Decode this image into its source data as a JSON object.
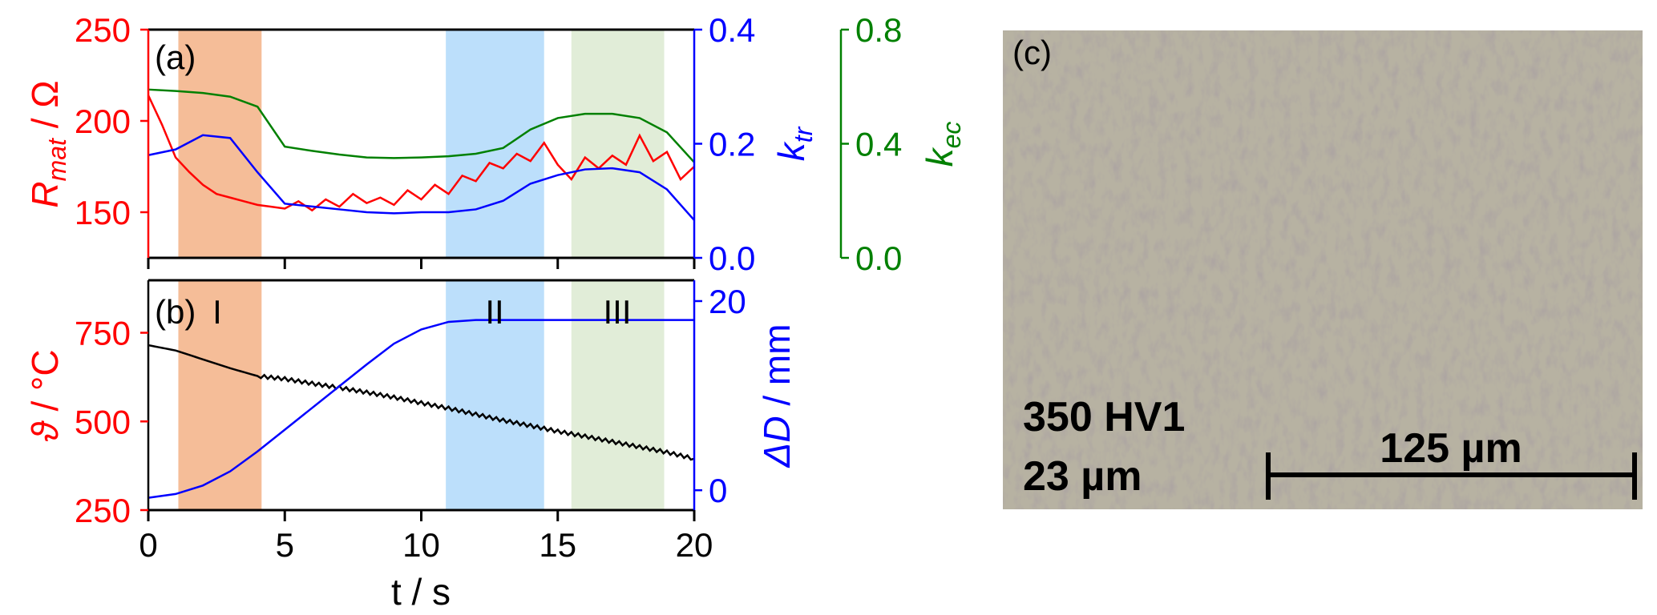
{
  "chart_data": [
    {
      "panel": "(a)",
      "type": "line",
      "x_label": "t / s",
      "xlim": [
        0,
        20
      ],
      "x_ticks": [
        "0",
        "5",
        "10",
        "15",
        "20"
      ],
      "shaded_regions": [
        {
          "from": 1.1,
          "to": 4.15,
          "color": "#f5bd98"
        },
        {
          "from": 10.9,
          "to": 14.5,
          "color": "#bcdffb"
        },
        {
          "from": 15.5,
          "to": 18.9,
          "color": "#e1edd8"
        }
      ],
      "axes": {
        "left": {
          "label_main": "R",
          "label_sub": "mat",
          "label_rest": " / Ω",
          "color": "#ff0000",
          "ylim": [
            125,
            250
          ],
          "ticks": [
            "150",
            "200",
            "250"
          ]
        },
        "right": {
          "label_main": "k",
          "label_sub": "tr",
          "color": "#0000ff",
          "ylim": [
            0,
            0.4
          ],
          "ticks": [
            "0.0",
            "0.2",
            "0.4"
          ]
        },
        "right2": {
          "label_main": "k",
          "label_sub": "ec",
          "color": "#008000",
          "ylim": [
            0,
            0.8
          ],
          "ticks": [
            "0.0",
            "0.4",
            "0.8"
          ]
        }
      },
      "series": [
        {
          "name": "R_mat",
          "axis": "left",
          "color": "#ff0000",
          "t_step": 0.5,
          "values": [
            214,
            198,
            180,
            172,
            165,
            160,
            158,
            156,
            154,
            153,
            152,
            156,
            151,
            157,
            153,
            160,
            155,
            158,
            154,
            162,
            157,
            165,
            160,
            170,
            167,
            177,
            174,
            182,
            178,
            188,
            176,
            168,
            180,
            174,
            181,
            176,
            192,
            178,
            183,
            168,
            175
          ]
        },
        {
          "name": "k_tr",
          "axis": "right",
          "color": "#0000ff",
          "t_step": 1,
          "values": [
            0.18,
            0.19,
            0.215,
            0.21,
            0.15,
            0.095,
            0.09,
            0.085,
            0.08,
            0.078,
            0.08,
            0.08,
            0.085,
            0.1,
            0.13,
            0.145,
            0.155,
            0.157,
            0.15,
            0.12,
            0.066
          ]
        },
        {
          "name": "k_ec",
          "axis": "right2",
          "color": "#008000",
          "t_step": 1,
          "values": [
            0.59,
            0.585,
            0.578,
            0.565,
            0.53,
            0.39,
            0.375,
            0.362,
            0.352,
            0.35,
            0.352,
            0.356,
            0.365,
            0.385,
            0.45,
            0.49,
            0.505,
            0.505,
            0.49,
            0.44,
            0.335
          ]
        }
      ]
    },
    {
      "panel": "(b)",
      "type": "line",
      "x_label": "t / s",
      "xlim": [
        0,
        20
      ],
      "x_ticks": [
        "0",
        "5",
        "10",
        "15",
        "20"
      ],
      "region_labels": [
        "I",
        "II",
        "III"
      ],
      "axes": {
        "left": {
          "label_main": "ϑ",
          "label_rest": " / °C",
          "color": "#ff0000",
          "ylim": [
            250,
            898
          ],
          "ticks": [
            "250",
            "500",
            "750"
          ]
        },
        "right": {
          "label_main": "ΔD",
          "label_rest": " / mm",
          "color": "#0000ff",
          "ylim": [
            -2.1,
            22.2
          ],
          "ticks": [
            "0",
            "20"
          ]
        }
      },
      "series": [
        {
          "name": "temperature",
          "axis": "left",
          "color": "#000000",
          "t_step": 1,
          "values": [
            715,
            700,
            675,
            650,
            628,
            620,
            607,
            595,
            582,
            568,
            552,
            537,
            520,
            503,
            488,
            472,
            458,
            443,
            428,
            413,
            395
          ]
        },
        {
          "name": "ΔD",
          "axis": "right",
          "color": "#0000ff",
          "t_step": 1,
          "values": [
            -0.8,
            -0.4,
            0.5,
            2,
            4.1,
            6.4,
            8.7,
            11,
            13.3,
            15.5,
            17,
            17.8,
            18,
            18,
            18,
            18,
            18,
            18,
            18,
            18,
            18
          ]
        }
      ]
    }
  ],
  "micrograph": {
    "label": "(c)",
    "hardness": "350 HV1",
    "grain_size": "23 µm",
    "scale_bar": "125 µm"
  }
}
